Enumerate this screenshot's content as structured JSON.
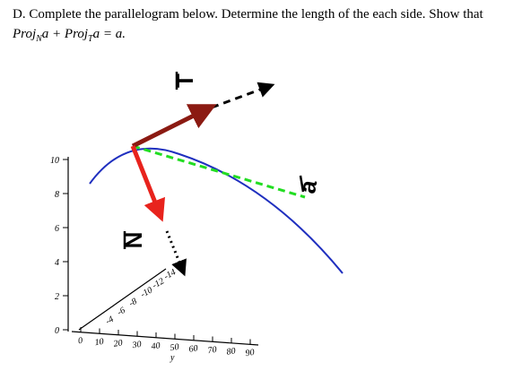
{
  "question": {
    "line_1": "D. Complete the parallelogram below. Determine the length of the each side. Show that",
    "formula": {
      "text_1": "Proj",
      "sub_1": "N",
      "text_2": "a + Proj",
      "sub_2": "T",
      "text_3": "a = a."
    }
  },
  "figure": {
    "vectors": {
      "t": "T",
      "n": "N",
      "a": "a"
    },
    "vertical_axis_ticks": [
      "10",
      "8",
      "6",
      "4",
      "2",
      "0"
    ],
    "bottom_axis_ticks": [
      "0",
      "10",
      "20",
      "30",
      "40",
      "50",
      "60",
      "70",
      "80",
      "90"
    ],
    "bottom_axis_label": "y",
    "depth_axis_ticks": [
      "-4",
      "-6",
      "-8",
      "-10",
      "-12",
      "-14"
    ]
  }
}
